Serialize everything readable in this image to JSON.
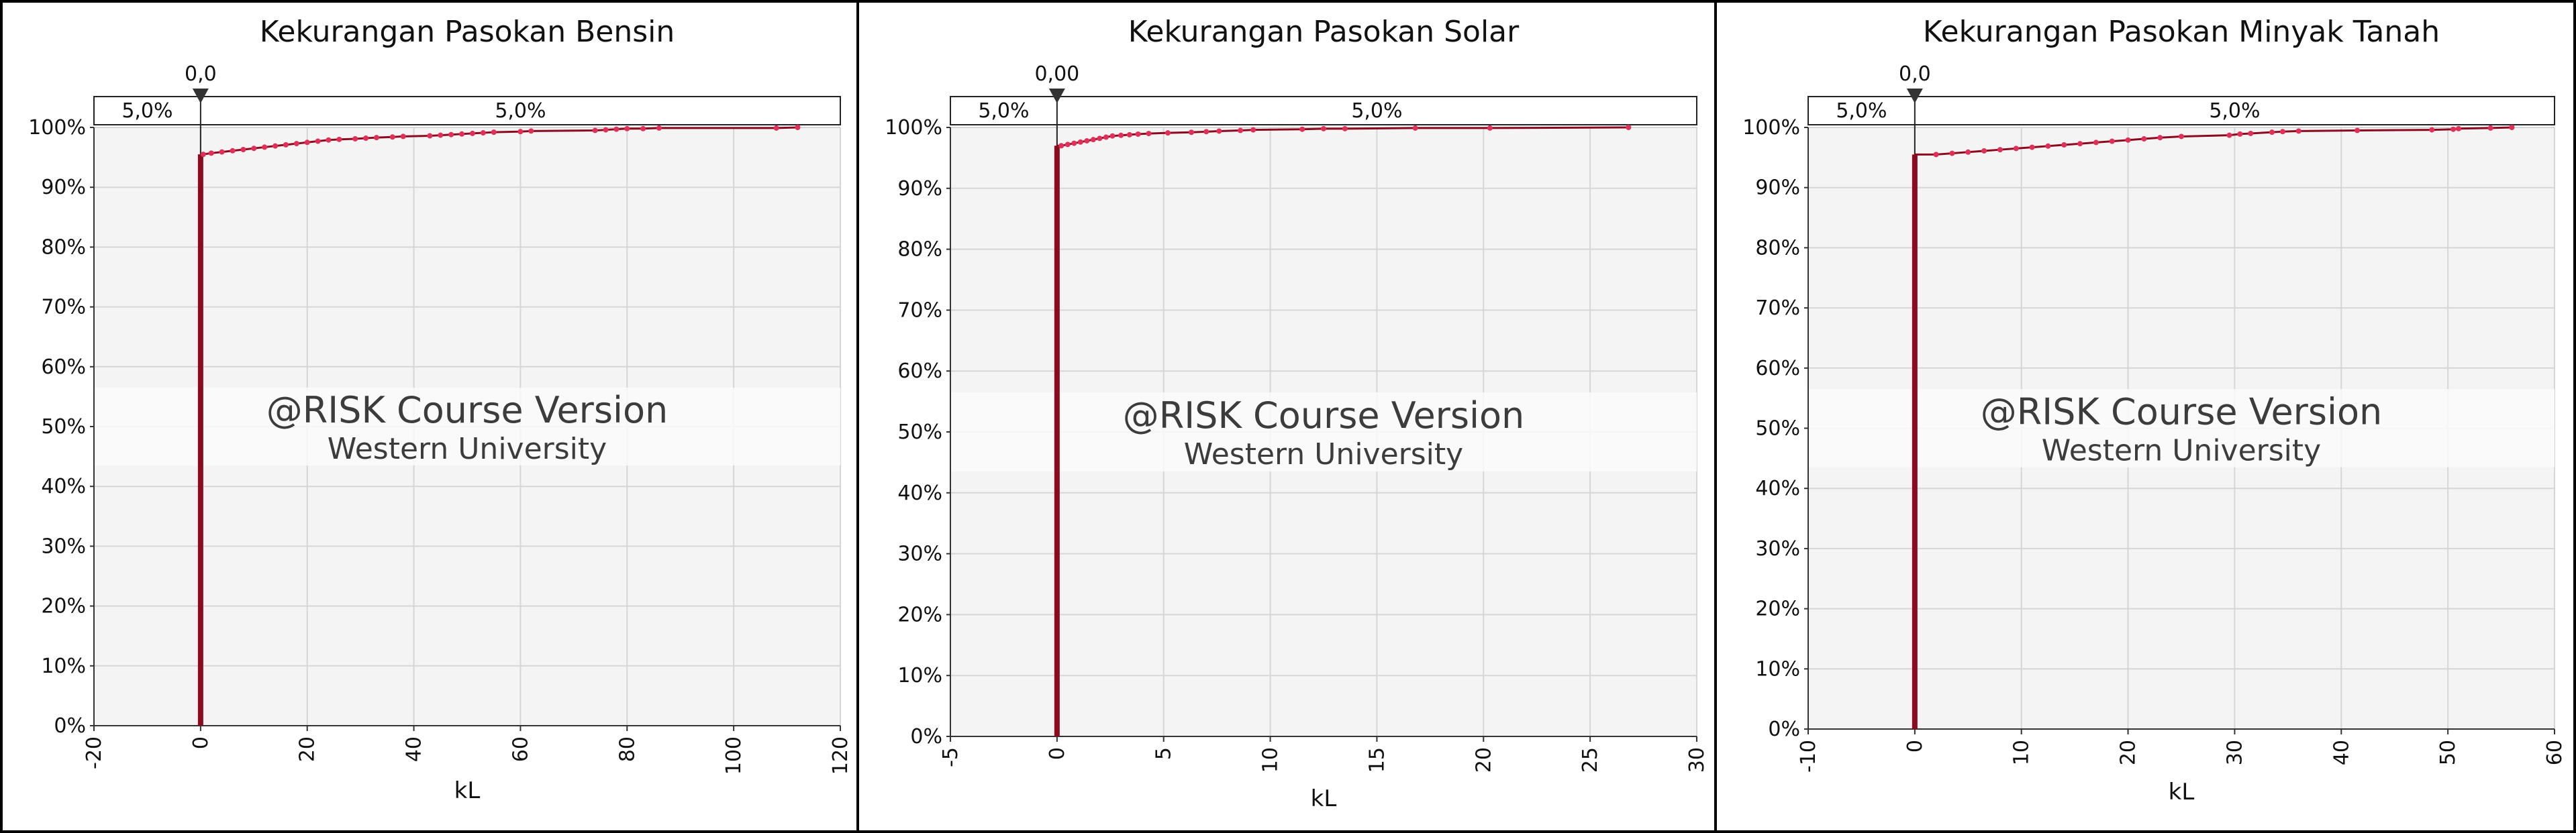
{
  "chart_data": [
    {
      "type": "cumulative",
      "title": "Kekurangan Pasokan Bensin",
      "xlabel": "kL",
      "ylabel": "",
      "xlim": [
        -20,
        120
      ],
      "ylim": [
        0,
        1
      ],
      "x_ticks": [
        "-20",
        "0",
        "20",
        "40",
        "60",
        "80",
        "100",
        "120"
      ],
      "x_tick_values": [
        -20,
        0,
        20,
        40,
        60,
        80,
        100,
        120
      ],
      "y_ticks": [
        "0%",
        "10%",
        "20%",
        "30%",
        "40%",
        "50%",
        "60%",
        "70%",
        "80%",
        "90%",
        "100%"
      ],
      "y_tick_values": [
        0,
        0.1,
        0.2,
        0.3,
        0.4,
        0.5,
        0.6,
        0.7,
        0.8,
        0.9,
        1.0
      ],
      "delimiter": {
        "value": 0,
        "label": "0,0"
      },
      "band": {
        "left_label": "5,0%",
        "right_label": "5,0%"
      },
      "series": [
        {
          "color": "#8b0a1e",
          "point_color": "#e0305a",
          "jump": [
            0,
            0.955
          ],
          "points": [
            {
              "x": 0.5,
              "y": 0.955
            },
            {
              "x": 2,
              "y": 0.957
            },
            {
              "x": 4,
              "y": 0.959
            },
            {
              "x": 6,
              "y": 0.961
            },
            {
              "x": 8,
              "y": 0.963
            },
            {
              "x": 10,
              "y": 0.965
            },
            {
              "x": 12,
              "y": 0.967
            },
            {
              "x": 14,
              "y": 0.969
            },
            {
              "x": 16,
              "y": 0.971
            },
            {
              "x": 18,
              "y": 0.973
            },
            {
              "x": 20,
              "y": 0.975
            },
            {
              "x": 22,
              "y": 0.977
            },
            {
              "x": 24,
              "y": 0.979
            },
            {
              "x": 26,
              "y": 0.98
            },
            {
              "x": 29,
              "y": 0.981
            },
            {
              "x": 31,
              "y": 0.982
            },
            {
              "x": 33,
              "y": 0.983
            },
            {
              "x": 36,
              "y": 0.984
            },
            {
              "x": 38,
              "y": 0.985
            },
            {
              "x": 43,
              "y": 0.986
            },
            {
              "x": 45,
              "y": 0.987
            },
            {
              "x": 47,
              "y": 0.988
            },
            {
              "x": 49,
              "y": 0.989
            },
            {
              "x": 51,
              "y": 0.99
            },
            {
              "x": 53,
              "y": 0.991
            },
            {
              "x": 55,
              "y": 0.992
            },
            {
              "x": 60,
              "y": 0.993
            },
            {
              "x": 62,
              "y": 0.994
            },
            {
              "x": 74,
              "y": 0.995
            },
            {
              "x": 76,
              "y": 0.996
            },
            {
              "x": 78,
              "y": 0.997
            },
            {
              "x": 80,
              "y": 0.998
            },
            {
              "x": 83,
              "y": 0.998
            },
            {
              "x": 86,
              "y": 0.999
            },
            {
              "x": 108,
              "y": 0.999
            },
            {
              "x": 112,
              "y": 1.0
            }
          ]
        }
      ]
    },
    {
      "type": "cumulative",
      "title": "Kekurangan Pasokan Solar",
      "xlabel": "kL",
      "ylabel": "",
      "xlim": [
        -5,
        30
      ],
      "ylim": [
        0,
        1
      ],
      "x_ticks": [
        "-5",
        "0",
        "5",
        "10",
        "15",
        "20",
        "25",
        "30"
      ],
      "x_tick_values": [
        -5,
        0,
        5,
        10,
        15,
        20,
        25,
        30
      ],
      "y_ticks": [
        "0%",
        "10%",
        "20%",
        "30%",
        "40%",
        "50%",
        "60%",
        "70%",
        "80%",
        "90%",
        "100%"
      ],
      "y_tick_values": [
        0,
        0.1,
        0.2,
        0.3,
        0.4,
        0.5,
        0.6,
        0.7,
        0.8,
        0.9,
        1.0
      ],
      "delimiter": {
        "value": 0,
        "label": "0,00"
      },
      "band": {
        "left_label": "5,0%",
        "right_label": "5,0%"
      },
      "series": [
        {
          "color": "#8b0a1e",
          "point_color": "#e0305a",
          "jump": [
            0,
            0.97
          ],
          "points": [
            {
              "x": 0.2,
              "y": 0.97
            },
            {
              "x": 0.5,
              "y": 0.972
            },
            {
              "x": 0.8,
              "y": 0.974
            },
            {
              "x": 1.1,
              "y": 0.976
            },
            {
              "x": 1.4,
              "y": 0.978
            },
            {
              "x": 1.7,
              "y": 0.98
            },
            {
              "x": 2.0,
              "y": 0.982
            },
            {
              "x": 2.3,
              "y": 0.984
            },
            {
              "x": 2.6,
              "y": 0.986
            },
            {
              "x": 3.0,
              "y": 0.987
            },
            {
              "x": 3.4,
              "y": 0.988
            },
            {
              "x": 3.8,
              "y": 0.989
            },
            {
              "x": 4.3,
              "y": 0.99
            },
            {
              "x": 5.2,
              "y": 0.991
            },
            {
              "x": 6.3,
              "y": 0.992
            },
            {
              "x": 7.0,
              "y": 0.993
            },
            {
              "x": 7.6,
              "y": 0.994
            },
            {
              "x": 8.6,
              "y": 0.995
            },
            {
              "x": 9.2,
              "y": 0.996
            },
            {
              "x": 11.5,
              "y": 0.997
            },
            {
              "x": 12.5,
              "y": 0.998
            },
            {
              "x": 13.5,
              "y": 0.998
            },
            {
              "x": 16.8,
              "y": 0.999
            },
            {
              "x": 20.3,
              "y": 0.999
            },
            {
              "x": 26.8,
              "y": 1.0
            }
          ]
        }
      ]
    },
    {
      "type": "cumulative",
      "title": "Kekurangan Pasokan Minyak Tanah",
      "xlabel": "kL",
      "ylabel": "",
      "xlim": [
        -10,
        60
      ],
      "ylim": [
        0,
        1
      ],
      "x_ticks": [
        "-10",
        "0",
        "10",
        "20",
        "30",
        "40",
        "50",
        "60"
      ],
      "x_tick_values": [
        -10,
        0,
        10,
        20,
        30,
        40,
        50,
        60
      ],
      "y_ticks": [
        "0%",
        "10%",
        "20%",
        "30%",
        "40%",
        "50%",
        "60%",
        "70%",
        "80%",
        "90%",
        "100%"
      ],
      "y_tick_values": [
        0,
        0.1,
        0.2,
        0.3,
        0.4,
        0.5,
        0.6,
        0.7,
        0.8,
        0.9,
        1.0
      ],
      "delimiter": {
        "value": 0,
        "label": "0,0"
      },
      "band": {
        "left_label": "5,0%",
        "right_label": "5,0%"
      },
      "series": [
        {
          "color": "#8b0a1e",
          "point_color": "#e0305a",
          "jump": [
            0,
            0.955
          ],
          "points": [
            {
              "x": 2,
              "y": 0.955
            },
            {
              "x": 3.5,
              "y": 0.957
            },
            {
              "x": 5,
              "y": 0.959
            },
            {
              "x": 6.5,
              "y": 0.961
            },
            {
              "x": 8,
              "y": 0.963
            },
            {
              "x": 9.5,
              "y": 0.965
            },
            {
              "x": 11,
              "y": 0.967
            },
            {
              "x": 12.5,
              "y": 0.969
            },
            {
              "x": 14,
              "y": 0.971
            },
            {
              "x": 15.5,
              "y": 0.973
            },
            {
              "x": 17,
              "y": 0.975
            },
            {
              "x": 18.5,
              "y": 0.977
            },
            {
              "x": 20,
              "y": 0.979
            },
            {
              "x": 21.5,
              "y": 0.981
            },
            {
              "x": 23,
              "y": 0.983
            },
            {
              "x": 25,
              "y": 0.985
            },
            {
              "x": 29.5,
              "y": 0.987
            },
            {
              "x": 30.5,
              "y": 0.989
            },
            {
              "x": 31.5,
              "y": 0.99
            },
            {
              "x": 33.5,
              "y": 0.992
            },
            {
              "x": 34.5,
              "y": 0.993
            },
            {
              "x": 36,
              "y": 0.994
            },
            {
              "x": 41.5,
              "y": 0.995
            },
            {
              "x": 48.5,
              "y": 0.996
            },
            {
              "x": 50.5,
              "y": 0.997
            },
            {
              "x": 51,
              "y": 0.998
            },
            {
              "x": 54,
              "y": 0.999
            },
            {
              "x": 56,
              "y": 1.0
            }
          ]
        }
      ]
    }
  ],
  "watermark": {
    "line1": "@RISK Course Version",
    "line2": "Western University"
  },
  "colors": {
    "plot_background": "#f4f4f4",
    "grid": "#d6d6d6",
    "band_background": "#ffffff",
    "watermark_band": "#fafafa"
  }
}
